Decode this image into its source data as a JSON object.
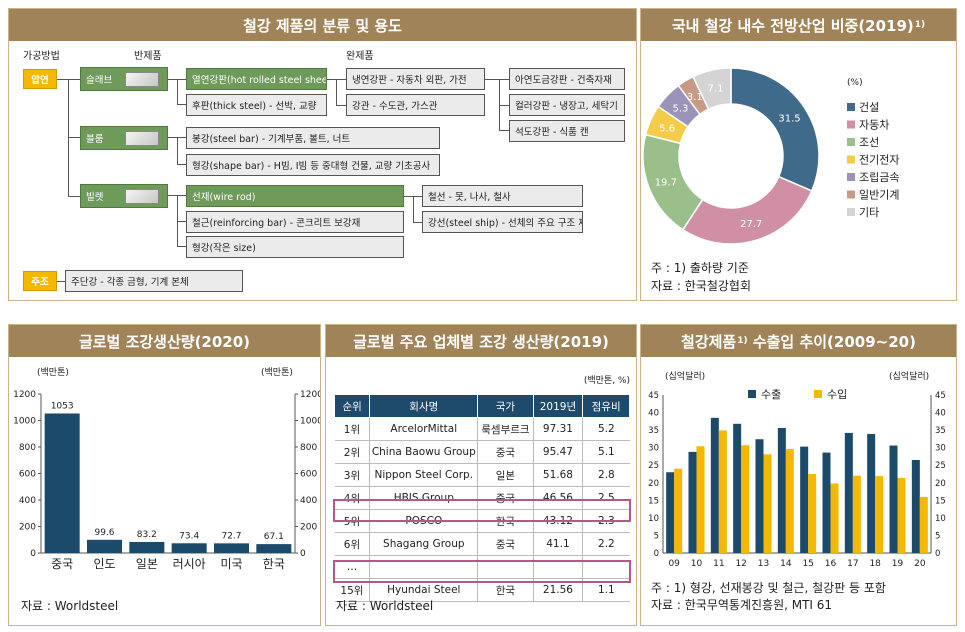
{
  "classification": {
    "title": "철강 제품의 분류 및 용도",
    "hdr_method": "가공방법",
    "hdr_semi": "반제품",
    "hdr_finished": "완제품",
    "methods": [
      "압연",
      "주조"
    ],
    "semis": [
      "슬래브",
      "블룸",
      "빌렛"
    ],
    "green1": "열연강판(hot rolled steel sheet)",
    "box_thick": "후판(thick steel) - 선박, 교량",
    "box_cold": "냉연강판 - 자동차 외판, 가전",
    "box_pipe": "강관 - 수도관, 가스관",
    "box_galv": "아연도금강판 - 건축자재",
    "box_color": "컬러강판 - 냉장고, 세탁기",
    "box_tin": "석도강판 - 식품 캔",
    "box_bar": "봉강(steel bar) - 기계부품, 볼트, 너트",
    "box_shape": "형강(shape bar) - H빔, I빔 등 중대형 건물, 교량 기초공사",
    "green2": "선재(wire rod)",
    "box_rebar": "철근(reinforcing bar) - 콘크리트 보강재",
    "box_smallshape": "형강(작은 size)",
    "box_wire": "철선 - 못, 나사, 철사",
    "box_ship": "강선(steel ship) - 선체의 주요 구조 재료",
    "box_cast": "주단강 - 각종 금형, 기계 본체"
  },
  "panel_donut": {
    "title": "국내 철강 내수 전방산업 비중(2019)",
    "title_sup": "1)",
    "unit": "(%)",
    "note1": "주 : 1) 출하량 기준",
    "note2": "자료 : 한국철강협회"
  },
  "panel_global": {
    "title": "글로벌 조강생산량(2020)",
    "unit_left": "(백만톤)",
    "unit_right": "(백만톤)",
    "source": "자료 : Worldsteel"
  },
  "panel_companies": {
    "title": "글로벌 주요 업체별 조강 생산량(2019)",
    "unit": "(백만톤, %)",
    "headers": [
      "순위",
      "회사명",
      "국가",
      "2019년",
      "점유비"
    ],
    "rows": [
      [
        "1위",
        "ArcelorMittal",
        "룩셈부르크",
        "97.31",
        "5.2"
      ],
      [
        "2위",
        "China Baowu Group",
        "중국",
        "95.47",
        "5.1"
      ],
      [
        "3위",
        "Nippon Steel Corp.",
        "일본",
        "51.68",
        "2.8"
      ],
      [
        "4위",
        "HBIS Group",
        "중국",
        "46.56",
        "2.5"
      ],
      [
        "5위",
        "POSCO",
        "한국",
        "43.12",
        "2.3"
      ],
      [
        "6위",
        "Shagang Group",
        "중국",
        "41.1",
        "2.2"
      ],
      [
        "…",
        "",
        "",
        "",
        ""
      ],
      [
        "15위",
        "Hyundai Steel",
        "한국",
        "21.56",
        "1.1"
      ]
    ],
    "source": "자료 : Worldsteel"
  },
  "panel_trade": {
    "title": "철강제품",
    "title_sup": "1)",
    "title_rest": " 수출입 추이(2009~20)",
    "unit_left": "(십억달러)",
    "unit_right": "(십억달러)",
    "note1": "주 : 1) 형강, 선재봉강 및 철근, 철강판 등 포함",
    "note2": "자료 : 한국무역통계진흥원, MTI 61"
  },
  "chart_data": [
    {
      "type": "pie",
      "title": "국내 철강 내수 전방산업 비중(2019)",
      "unit": "%",
      "labels": [
        "건설",
        "자동차",
        "조선",
        "전기전자",
        "조립금속",
        "일반기계",
        "기타"
      ],
      "values": [
        31.5,
        27.7,
        19.7,
        5.6,
        5.3,
        3.1,
        7.1
      ],
      "colors": [
        "#3f6a8a",
        "#d18fa5",
        "#9bbf8a",
        "#f5cc4a",
        "#9b93b8",
        "#c79a86",
        "#d4d4d4"
      ],
      "legend": "right"
    },
    {
      "type": "bar",
      "title": "글로벌 조강생산량(2020)",
      "categories": [
        "중국",
        "인도",
        "일본",
        "러시아",
        "미국",
        "한국"
      ],
      "values": [
        1053,
        99.6,
        83.2,
        73.4,
        72.7,
        67.1
      ],
      "ylim": [
        0,
        1200
      ],
      "yticks": [
        0,
        200,
        400,
        600,
        800,
        1000,
        1200
      ],
      "color": "#1b4a6b"
    },
    {
      "type": "table",
      "title": "글로벌 주요 업체별 조강 생산량(2019)",
      "columns": [
        "순위",
        "회사명",
        "국가",
        "2019년",
        "점유비"
      ],
      "highlighted": [
        "5위",
        "15위"
      ]
    },
    {
      "type": "bar",
      "title": "철강제품 수출입 추이(2009~20)",
      "categories": [
        "09",
        "10",
        "11",
        "12",
        "13",
        "14",
        "15",
        "16",
        "17",
        "18",
        "19",
        "20"
      ],
      "series": [
        {
          "name": "수출",
          "values": [
            23.0,
            28.8,
            38.5,
            36.8,
            32.4,
            35.6,
            30.3,
            28.6,
            34.2,
            33.9,
            30.6,
            26.5
          ],
          "color": "#1b4a6b"
        },
        {
          "name": "수입",
          "values": [
            24.0,
            30.4,
            34.9,
            30.7,
            28.1,
            29.6,
            22.5,
            19.8,
            22.0,
            21.9,
            21.4,
            16.0
          ],
          "color": "#f5b800"
        }
      ],
      "ylim": [
        0,
        45
      ],
      "yticks": [
        0,
        5,
        10,
        15,
        20,
        25,
        30,
        35,
        40,
        45
      ],
      "legend": "top"
    }
  ]
}
